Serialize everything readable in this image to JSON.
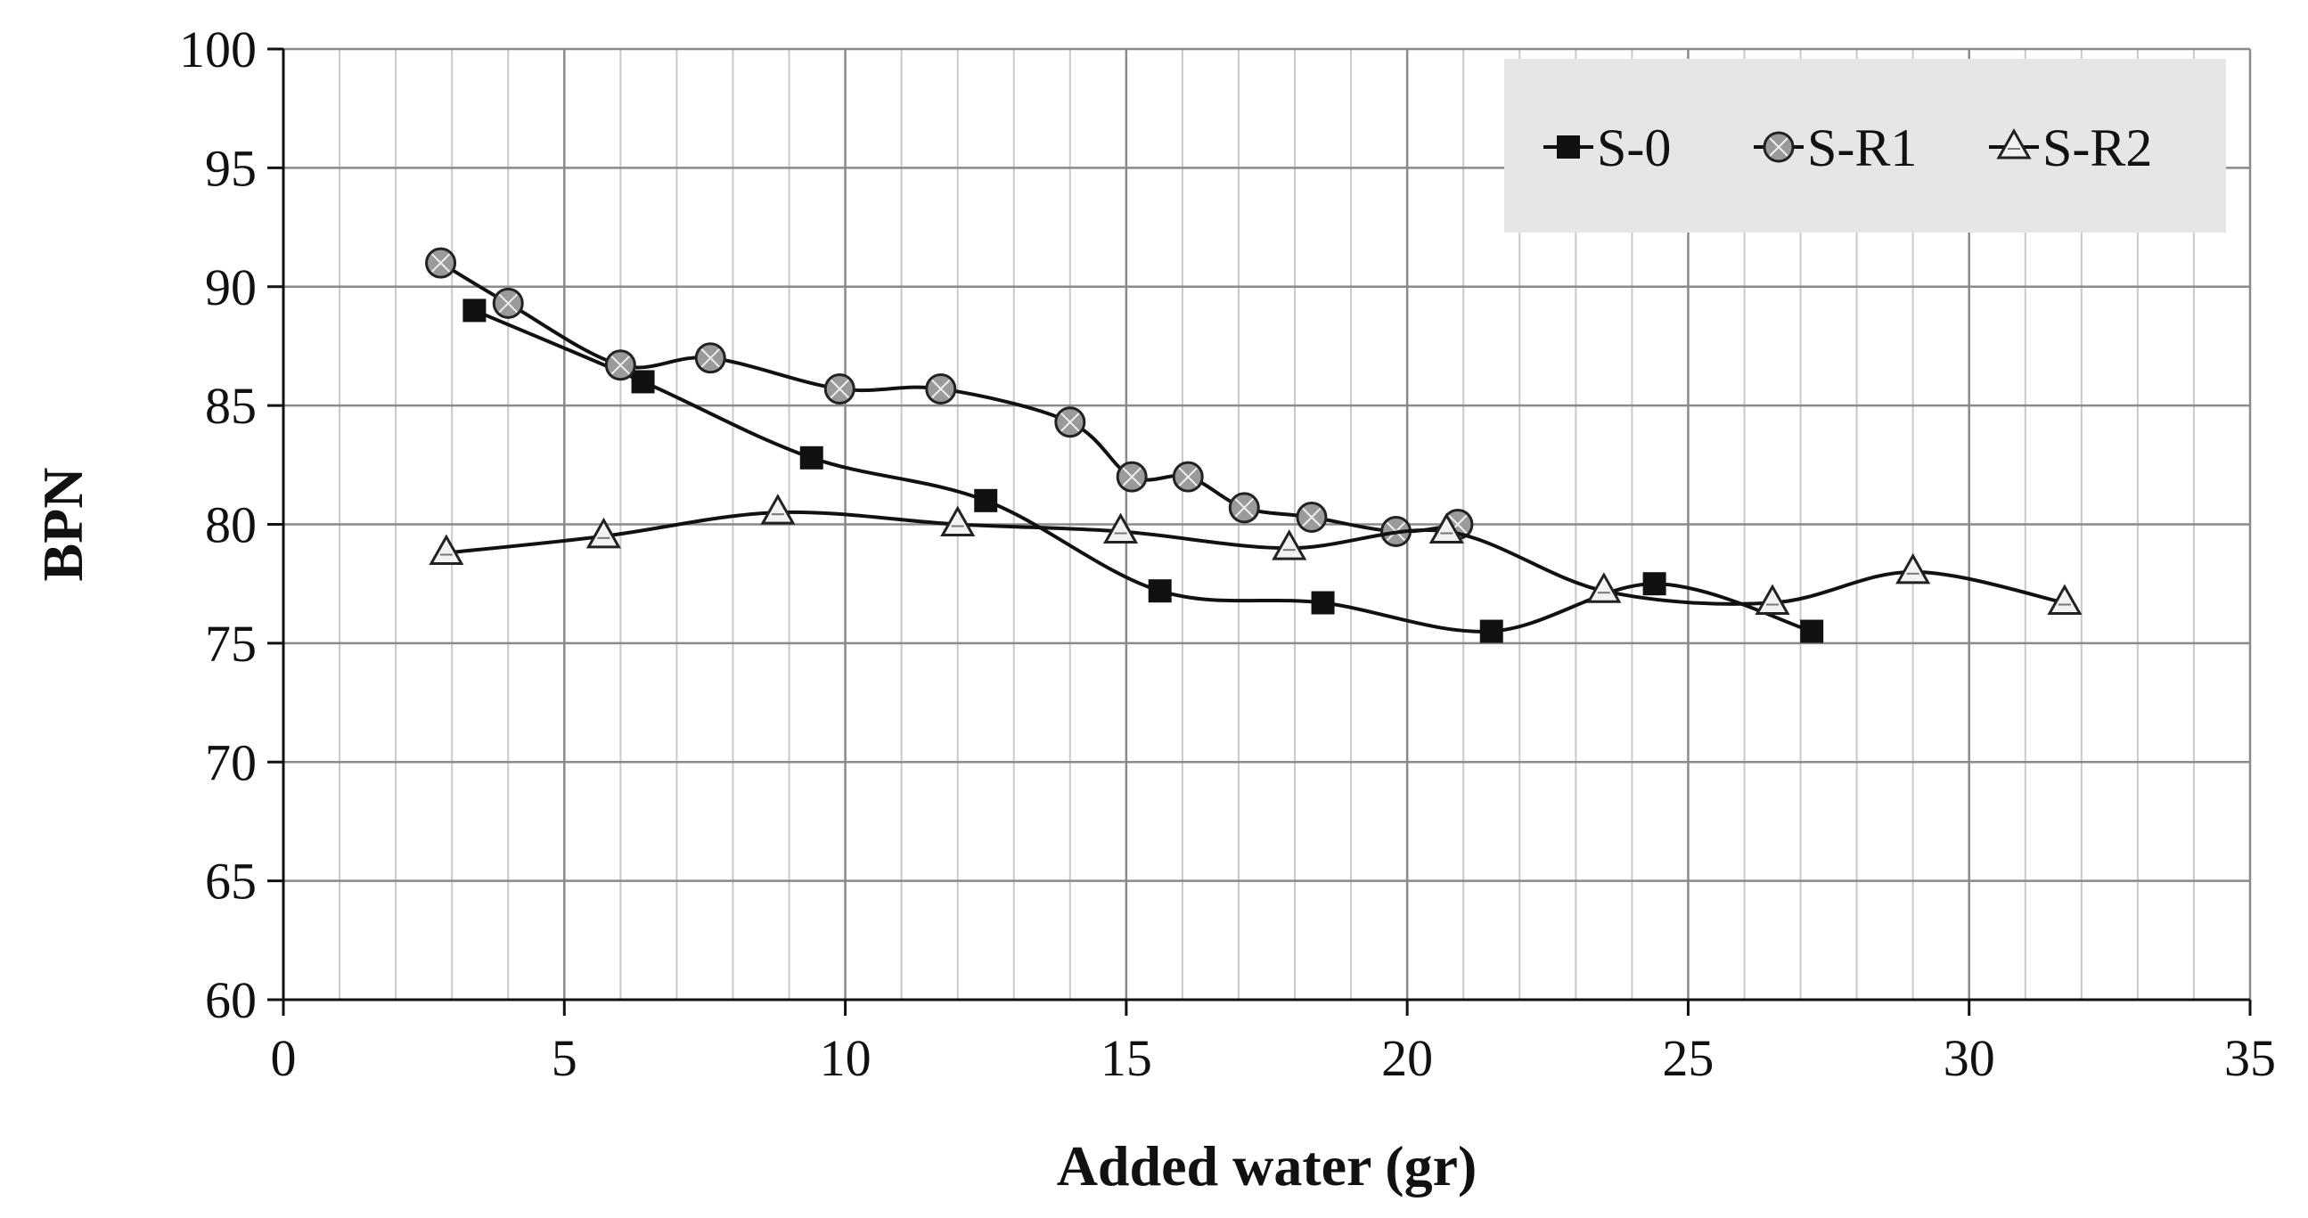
{
  "chart_data": {
    "type": "line",
    "title": "",
    "xlabel": "Added water (gr)",
    "ylabel": "BPN",
    "xlim": [
      0,
      35
    ],
    "ylim": [
      60,
      100
    ],
    "x_ticks": [
      "0",
      "5",
      "10",
      "15",
      "20",
      "25",
      "30",
      "35"
    ],
    "y_ticks": [
      "60",
      "65",
      "70",
      "75",
      "80",
      "85",
      "90",
      "95",
      "100"
    ],
    "grid": true,
    "legend_position": "top-right",
    "series": [
      {
        "name": "S-0",
        "marker": "square",
        "x": [
          3.4,
          6.4,
          9.4,
          12.5,
          15.6,
          18.5,
          21.5,
          24.4,
          27.2
        ],
        "y": [
          89.0,
          86.0,
          82.8,
          81.0,
          77.2,
          76.7,
          75.5,
          77.5,
          75.5
        ]
      },
      {
        "name": "S-R1",
        "marker": "circle",
        "x": [
          2.8,
          4.0,
          6.0,
          7.6,
          9.9,
          11.7,
          14.0,
          15.1,
          16.1,
          17.1,
          18.3,
          19.8,
          20.9
        ],
        "y": [
          91.0,
          89.3,
          86.7,
          87.0,
          85.7,
          85.7,
          84.3,
          82.0,
          82.0,
          80.7,
          80.3,
          79.7,
          80.0
        ]
      },
      {
        "name": "S-R2",
        "marker": "triangle",
        "x": [
          2.9,
          5.7,
          8.8,
          12.0,
          14.9,
          17.9,
          20.7,
          23.5,
          26.5,
          29.0,
          31.7
        ],
        "y": [
          78.8,
          79.5,
          80.5,
          80.0,
          79.7,
          79.0,
          79.7,
          77.2,
          76.7,
          78.0,
          76.7
        ]
      }
    ]
  }
}
